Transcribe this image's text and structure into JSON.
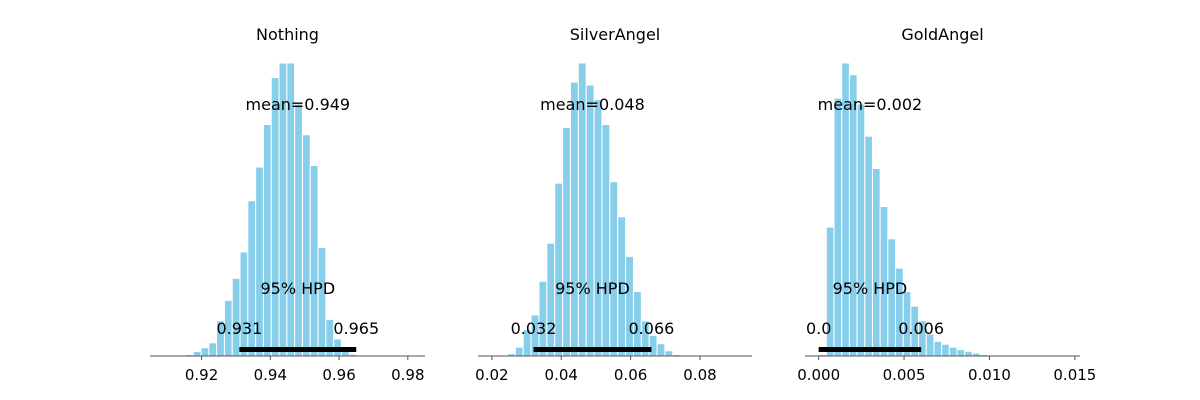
{
  "colors": {
    "bar": "#87ceeb",
    "bar_edge": "#ffffff",
    "hpd_line": "#000000",
    "axis": "#555555",
    "text": "#000000"
  },
  "chart_data": [
    {
      "type": "bar",
      "title": "Nothing",
      "mean_label": "mean=0.949",
      "hpd_label": "95% HPD",
      "hpd": {
        "low": 0.931,
        "high": 0.965,
        "low_label": "0.931",
        "high_label": "0.965"
      },
      "xlim": [
        0.905,
        0.985
      ],
      "ylim": [
        0,
        1.0
      ],
      "xticks": [
        0.92,
        0.94,
        0.96,
        0.98
      ],
      "xtick_labels": [
        "0.92",
        "0.94",
        "0.96",
        "0.98"
      ],
      "bin_start": 0.9153,
      "bin_width": 0.00227,
      "values": [
        0.005,
        0.015,
        0.028,
        0.045,
        0.12,
        0.19,
        0.265,
        0.355,
        0.53,
        0.645,
        0.79,
        0.95,
        1.0,
        1.0,
        0.86,
        0.755,
        0.65,
        0.37,
        0.125,
        0.058,
        0.028,
        0.006,
        0.003
      ]
    },
    {
      "type": "bar",
      "title": "SilverAngel",
      "mean_label": "mean=0.048",
      "hpd_label": "95% HPD",
      "hpd": {
        "low": 0.032,
        "high": 0.066,
        "low_label": "0.032",
        "high_label": "0.066"
      },
      "xlim": [
        0.016,
        0.095
      ],
      "ylim": [
        0,
        1.0
      ],
      "xticks": [
        0.02,
        0.04,
        0.06,
        0.08
      ],
      "xtick_labels": [
        "0.02",
        "0.04",
        "0.06",
        "0.08"
      ],
      "bin_start": 0.0245,
      "bin_width": 0.00227,
      "values": [
        0.008,
        0.03,
        0.09,
        0.14,
        0.255,
        0.385,
        0.59,
        0.78,
        0.935,
        1.0,
        0.925,
        0.875,
        0.79,
        0.595,
        0.475,
        0.34,
        0.22,
        0.12,
        0.07,
        0.042,
        0.018,
        0.005
      ]
    },
    {
      "type": "bar",
      "title": "GoldAngel",
      "mean_label": "mean=0.002",
      "hpd_label": "95% HPD",
      "hpd": {
        "low": 0.0,
        "high": 0.006,
        "low_label": "0.0",
        "high_label": "0.006"
      },
      "xlim": [
        -0.0008,
        0.0153
      ],
      "ylim": [
        0,
        1.0
      ],
      "xticks": [
        0.0,
        0.005,
        0.01,
        0.015
      ],
      "xtick_labels": [
        "0.000",
        "0.005",
        "0.010",
        "0.015"
      ],
      "bin_start": 0.0,
      "bin_width": 0.00045,
      "values": [
        0.005,
        0.44,
        0.88,
        1.0,
        0.96,
        0.86,
        0.75,
        0.64,
        0.51,
        0.4,
        0.3,
        0.22,
        0.17,
        0.12,
        0.075,
        0.05,
        0.04,
        0.03,
        0.022,
        0.016,
        0.01,
        0.005
      ]
    }
  ]
}
